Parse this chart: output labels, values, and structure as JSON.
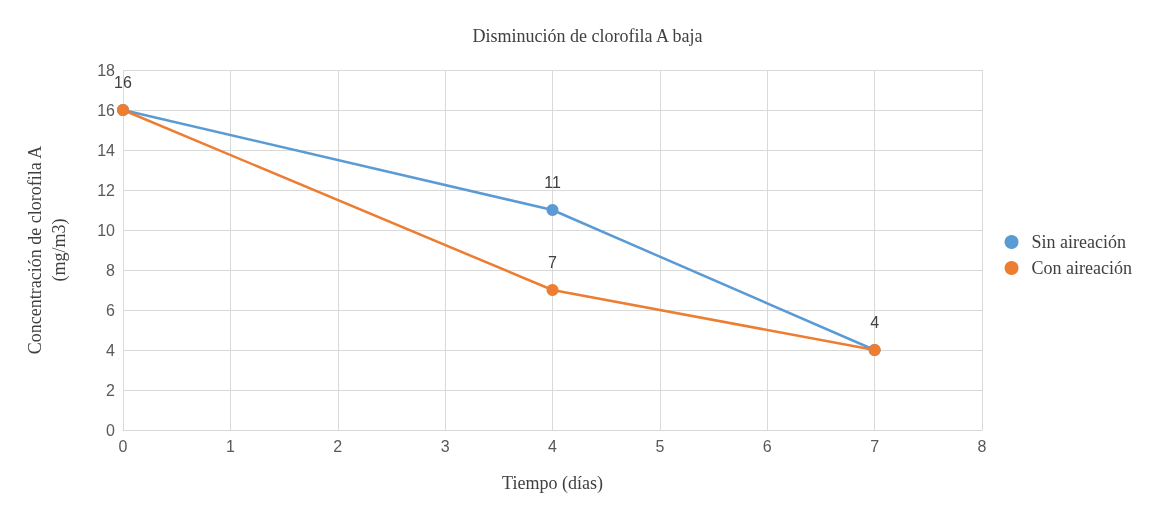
{
  "chart_data": {
    "type": "line",
    "title": "Disminución de clorofila A baja",
    "xlabel": "Tiempo (días)",
    "ylabel": "Concentración de clorofila A\n(mg/m3)",
    "x": [
      0,
      4,
      7
    ],
    "series": [
      {
        "name": "Sin aireación",
        "color": "#5b9bd5",
        "values": [
          16,
          11,
          4
        ],
        "value_labels": [
          "16",
          "11",
          "4"
        ]
      },
      {
        "name": "Con aireación",
        "color": "#ed7d31",
        "values": [
          16,
          7,
          4
        ],
        "value_labels": [
          null,
          "7",
          null
        ]
      }
    ],
    "xlim": [
      0,
      8
    ],
    "xticks": [
      0,
      1,
      2,
      3,
      4,
      5,
      6,
      7,
      8
    ],
    "ylim": [
      0,
      18
    ],
    "yticks": [
      0,
      2,
      4,
      6,
      8,
      10,
      12,
      14,
      16,
      18
    ],
    "grid": true,
    "legend": "right",
    "marker": "circle",
    "line_style": "solid"
  }
}
